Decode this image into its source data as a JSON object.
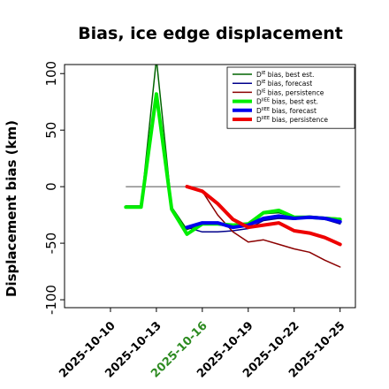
{
  "chart_data": {
    "type": "line",
    "title": "Bias, ice edge displacement",
    "xlabel": "",
    "ylabel": "Displacement bias (km)",
    "x_ticks": [
      "2025-10-10",
      "2025-10-13",
      "2025-10-16",
      "2025-10-19",
      "2025-10-22",
      "2025-10-25"
    ],
    "x_tick_colors": [
      "#000000",
      "#000000",
      "#2e8b22",
      "#000000",
      "#000000",
      "#000000"
    ],
    "x_range": [
      "2025-10-07",
      "2025-10-26"
    ],
    "ylim": [
      -107,
      108
    ],
    "y_ticks": [
      100,
      50,
      0,
      -50,
      -100
    ],
    "y_tick_labels": [
      "100",
      "50",
      "0",
      "-50",
      "-100"
    ],
    "reference_line": {
      "y": 0,
      "x_from": "2025-10-11",
      "x_to": "2025-10-25",
      "color": "#808080"
    },
    "legend_position": "top-right",
    "series": [
      {
        "name": "D^IE bias, best est.",
        "label_main": "D",
        "label_sup": "IE",
        "label_rest": " bias, best est.",
        "color": "#006400",
        "width": "thin",
        "x": [
          "2025-10-11",
          "2025-10-12",
          "2025-10-13",
          "2025-10-14",
          "2025-10-15",
          "2025-10-16",
          "2025-10-17",
          "2025-10-18",
          "2025-10-19",
          "2025-10-20",
          "2025-10-21",
          "2025-10-22",
          "2025-10-23",
          "2025-10-24",
          "2025-10-25"
        ],
        "y": [
          -17,
          -17,
          113,
          -18,
          -38,
          -33,
          -33,
          -34,
          -35,
          -24,
          -23,
          -27,
          -26,
          -27,
          -28
        ]
      },
      {
        "name": "D^IE bias, forecast",
        "label_main": "D",
        "label_sup": "IE",
        "label_rest": " bias, forecast",
        "color": "#00008b",
        "width": "thin",
        "x": [
          "2025-10-15",
          "2025-10-16",
          "2025-10-17",
          "2025-10-18",
          "2025-10-19",
          "2025-10-20",
          "2025-10-21",
          "2025-10-22",
          "2025-10-23",
          "2025-10-24",
          "2025-10-25"
        ],
        "y": [
          -36,
          -40,
          -40,
          -39,
          -37,
          -30,
          -28,
          -29,
          -27,
          -29,
          -33
        ]
      },
      {
        "name": "D^IE bias, persistence",
        "label_main": "D",
        "label_sup": "IE",
        "label_rest": " bias, persistence",
        "color": "#8b0000",
        "width": "thin",
        "x": [
          "2025-10-15",
          "2025-10-16",
          "2025-10-17",
          "2025-10-18",
          "2025-10-19",
          "2025-10-20",
          "2025-10-21",
          "2025-10-22",
          "2025-10-23",
          "2025-10-24",
          "2025-10-25"
        ],
        "y": [
          0,
          -4,
          -25,
          -40,
          -49,
          -47,
          -51,
          -55,
          -58,
          -65,
          -71
        ]
      },
      {
        "name": "D^IIEE bias, best est.",
        "label_main": "D",
        "label_sup": "IIEE",
        "label_rest": " bias, best est.",
        "color": "#00ee00",
        "width": "thick",
        "x": [
          "2025-10-11",
          "2025-10-12",
          "2025-10-13",
          "2025-10-14",
          "2025-10-15",
          "2025-10-16",
          "2025-10-17",
          "2025-10-18",
          "2025-10-19",
          "2025-10-20",
          "2025-10-21",
          "2025-10-22",
          "2025-10-23",
          "2025-10-24",
          "2025-10-25"
        ],
        "y": [
          -18,
          -18,
          82,
          -20,
          -42,
          -33,
          -33,
          -34,
          -33,
          -23,
          -21,
          -27,
          -27,
          -28,
          -29
        ]
      },
      {
        "name": "D^IIEE bias, forecast",
        "label_main": "D",
        "label_sup": "IIEE",
        "label_rest": " bias, forecast",
        "color": "#0000ee",
        "width": "thick",
        "x": [
          "2025-10-15",
          "2025-10-16",
          "2025-10-17",
          "2025-10-18",
          "2025-10-19",
          "2025-10-20",
          "2025-10-21",
          "2025-10-22",
          "2025-10-23",
          "2025-10-24",
          "2025-10-25"
        ],
        "y": [
          -36,
          -32,
          -32,
          -36,
          -34,
          -28,
          -26,
          -28,
          -27,
          -28,
          -31
        ]
      },
      {
        "name": "D^IIEE bias, persistence",
        "label_main": "D",
        "label_sup": "IIEE",
        "label_rest": " bias, persistence",
        "color": "#ee0000",
        "width": "thick",
        "x": [
          "2025-10-15",
          "2025-10-16",
          "2025-10-17",
          "2025-10-18",
          "2025-10-19",
          "2025-10-20",
          "2025-10-21",
          "2025-10-22",
          "2025-10-23",
          "2025-10-24",
          "2025-10-25"
        ],
        "y": [
          0,
          -4,
          -15,
          -29,
          -36,
          -34,
          -32,
          -39,
          -41,
          -45,
          -51
        ]
      }
    ]
  }
}
